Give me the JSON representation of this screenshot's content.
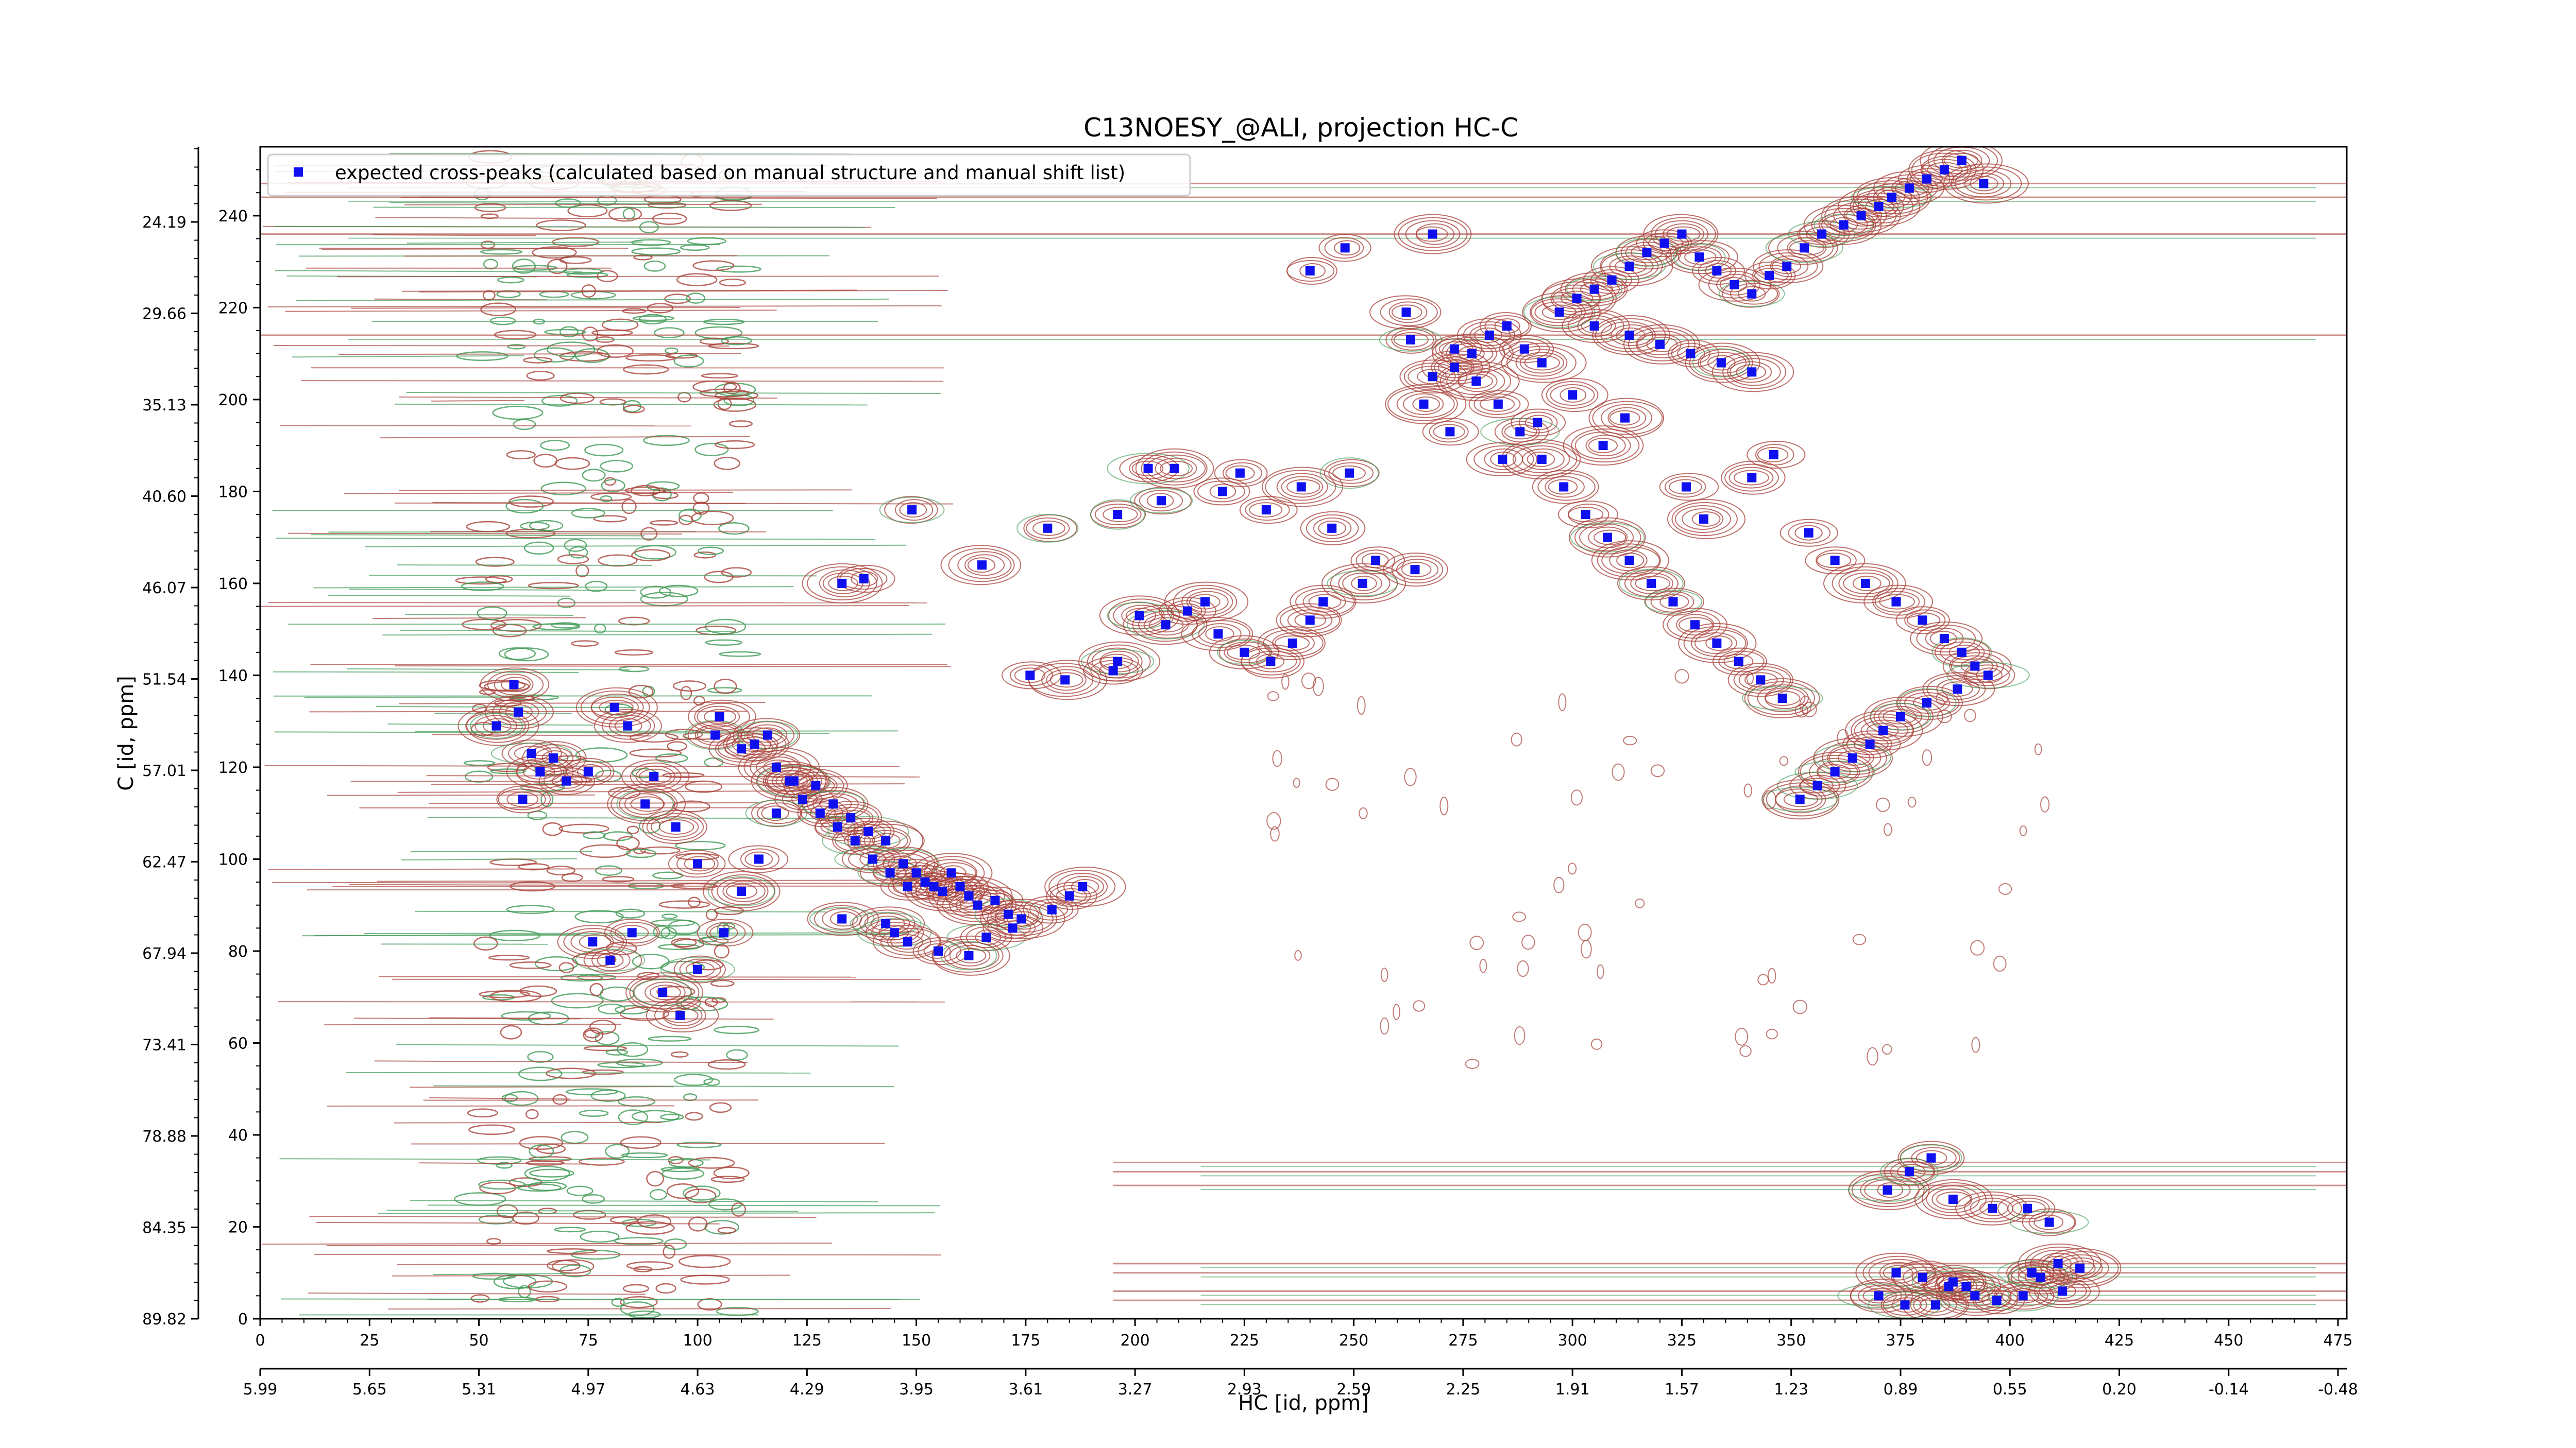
{
  "chart_data": {
    "type": "scatter",
    "title": "C13NOESY_@ALI, projection HC-C",
    "xlabel": "HC [id, ppm]",
    "ylabel": "C [id, ppm]",
    "x_index_ticks": [
      "0",
      "25",
      "50",
      "75",
      "100",
      "125",
      "150",
      "175",
      "200",
      "225",
      "250",
      "275",
      "300",
      "325",
      "350",
      "375",
      "400",
      "425",
      "450",
      "475"
    ],
    "x_ppm_ticks": [
      "5.99",
      "5.65",
      "5.31",
      "4.97",
      "4.63",
      "4.29",
      "3.95",
      "3.61",
      "3.27",
      "2.93",
      "2.59",
      "2.25",
      "1.91",
      "1.57",
      "1.23",
      "0.89",
      "0.55",
      "0.20",
      "-0.14",
      "-0.48"
    ],
    "y_index_ticks": [
      "0",
      "20",
      "40",
      "60",
      "80",
      "100",
      "120",
      "140",
      "160",
      "180",
      "200",
      "220",
      "240"
    ],
    "y_ppm_ticks": [
      "89.82",
      "84.35",
      "78.88",
      "73.41",
      "67.94",
      "62.47",
      "57.01",
      "51.54",
      "46.07",
      "40.60",
      "35.13",
      "29.66",
      "24.19"
    ],
    "xlim": [
      0,
      477
    ],
    "ylim": [
      0,
      255
    ],
    "legend": {
      "placement": "top-left",
      "label": "expected cross-peaks (calculated based on manual structure and manual shift list)"
    },
    "colors": {
      "positive_contour": "#a8423a",
      "negative_contour": "#3f9a55",
      "expected_peak": "#1010ee"
    },
    "series": [
      {
        "name": "expected cross-peaks (calculated based on manual structure and manual shift list)",
        "marker": "square",
        "x": [
          58,
          59,
          54,
          62,
          64,
          67,
          70,
          60,
          75,
          81,
          84,
          90,
          88,
          95,
          100,
          104,
          105,
          110,
          113,
          116,
          118,
          121,
          124,
          128,
          132,
          136,
          140,
          144,
          148,
          76,
          80,
          85,
          92,
          96,
          100,
          106,
          110,
          114,
          118,
          122,
          127,
          131,
          135,
          139,
          143,
          147,
          150,
          152,
          154,
          156,
          158,
          160,
          162,
          164,
          168,
          171,
          133,
          143,
          145,
          148,
          155,
          162,
          166,
          172,
          174,
          181,
          185,
          188,
          196,
          195,
          201,
          207,
          212,
          216,
          219,
          225,
          231,
          236,
          240,
          243,
          252,
          264,
          176,
          184,
          133,
          138,
          149,
          165,
          180,
          196,
          203,
          206,
          209,
          220,
          224,
          230,
          238,
          245,
          249,
          255,
          263,
          268,
          273,
          277,
          281,
          285,
          289,
          293,
          297,
          301,
          305,
          309,
          313,
          317,
          321,
          325,
          329,
          333,
          337,
          341,
          345,
          349,
          353,
          357,
          362,
          366,
          370,
          373,
          377,
          381,
          385,
          389,
          394,
          273,
          278,
          283,
          288,
          293,
          298,
          303,
          308,
          313,
          318,
          323,
          328,
          333,
          338,
          343,
          348,
          266,
          272,
          284,
          292,
          300,
          307,
          312,
          326,
          330,
          341,
          346,
          354,
          360,
          367,
          374,
          380,
          385,
          389,
          392,
          395,
          388,
          381,
          375,
          371,
          368,
          364,
          360,
          356,
          352,
          240,
          262,
          248,
          268,
          305,
          313,
          320,
          327,
          334,
          341,
          372,
          377,
          382,
          387,
          396,
          404,
          409,
          405,
          416,
          412,
          374,
          380,
          386,
          392,
          397,
          403,
          407,
          411,
          370,
          376,
          383,
          387,
          390
        ],
        "y": [
          138,
          132,
          129,
          123,
          119,
          122,
          117,
          113,
          119,
          133,
          129,
          118,
          112,
          107,
          99,
          127,
          131,
          124,
          125,
          127,
          120,
          117,
          113,
          110,
          107,
          104,
          100,
          97,
          94,
          82,
          78,
          84,
          71,
          66,
          76,
          84,
          93,
          100,
          110,
          117,
          116,
          112,
          109,
          106,
          104,
          99,
          97,
          95,
          94,
          93,
          97,
          94,
          92,
          90,
          91,
          88,
          87,
          86,
          84,
          82,
          80,
          79,
          83,
          85,
          87,
          89,
          92,
          94,
          143,
          141,
          153,
          151,
          154,
          156,
          149,
          145,
          143,
          147,
          152,
          156,
          160,
          163,
          140,
          139,
          160,
          161,
          176,
          164,
          172,
          175,
          185,
          178,
          185,
          180,
          184,
          176,
          181,
          172,
          184,
          165,
          213,
          205,
          207,
          210,
          214,
          216,
          211,
          208,
          219,
          222,
          224,
          226,
          229,
          232,
          234,
          236,
          231,
          228,
          225,
          223,
          227,
          229,
          233,
          236,
          238,
          240,
          242,
          244,
          246,
          248,
          250,
          252,
          247,
          211,
          204,
          199,
          193,
          187,
          181,
          175,
          170,
          165,
          160,
          156,
          151,
          147,
          143,
          139,
          135,
          199,
          193,
          187,
          195,
          201,
          190,
          196,
          181,
          174,
          183,
          188,
          171,
          165,
          160,
          156,
          152,
          148,
          145,
          142,
          140,
          137,
          134,
          131,
          128,
          125,
          122,
          119,
          116,
          113,
          228,
          219,
          233,
          236,
          216,
          214,
          212,
          210,
          208,
          206,
          28,
          32,
          35,
          26,
          24,
          24,
          21,
          10,
          11,
          6,
          10,
          9,
          7,
          5,
          4,
          5,
          9,
          12,
          5,
          3,
          3,
          8,
          7
        ]
      }
    ]
  }
}
